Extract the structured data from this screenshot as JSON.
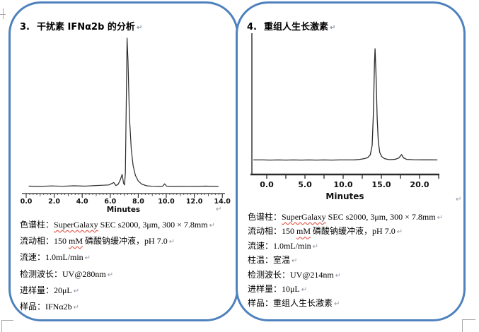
{
  "page": {
    "background": "#ffffff",
    "shape_border_color": "#4f81bd",
    "trace_color": "#2b2b2b",
    "paragraph_mark": "↵"
  },
  "panels": [
    {
      "title_number": "3.",
      "title": "干扰素 IFNα2b 的分析",
      "conditions": [
        {
          "parts": [
            {
              "t": "色谱柱："
            },
            {
              "t": "SuperGalaxy",
              "wavy": true
            },
            {
              "t": " SEC s2000, 3μm, 300 × 7.8mm"
            }
          ]
        },
        {
          "parts": [
            {
              "t": "流动相：150 "
            },
            {
              "t": "mM",
              "wavy": true
            },
            {
              "t": " 磷酸钠缓冲液，pH 7.0"
            }
          ]
        },
        {
          "parts": [
            {
              "t": "流速：1.0mL/min"
            }
          ]
        },
        {
          "parts": [
            {
              "t": "检测波长：UV@280nm"
            }
          ]
        },
        {
          "parts": [
            {
              "t": "进样量：20μL"
            }
          ]
        },
        {
          "parts": [
            {
              "t": "样品：IFNα2b"
            }
          ]
        }
      ]
    },
    {
      "title_number": "4.",
      "title": "重组人生长激素",
      "conditions": [
        {
          "parts": [
            {
              "t": "色谱柱："
            },
            {
              "t": "SuperGalaxy",
              "wavy": true
            },
            {
              "t": " SEC s2000, 3μm, 300 × 7.8mm"
            }
          ]
        },
        {
          "parts": [
            {
              "t": "流动相：150 "
            },
            {
              "t": "mM",
              "wavy": true
            },
            {
              "t": " 磷酸钠缓冲液，pH 7.0"
            }
          ]
        },
        {
          "parts": [
            {
              "t": "流速：1.0mL/min"
            }
          ]
        },
        {
          "parts": [
            {
              "t": "柱温：室温"
            }
          ]
        },
        {
          "parts": [
            {
              "t": "检测波长：UV@214nm"
            }
          ]
        },
        {
          "parts": [
            {
              "t": "进样量：10μL"
            }
          ]
        },
        {
          "parts": [
            {
              "t": "样品：重组人生长激素"
            }
          ]
        }
      ]
    }
  ],
  "chart_data": [
    {
      "type": "line",
      "title": "SEC chromatogram of IFNα2b",
      "xlabel": "Minutes",
      "ylabel": "",
      "xlim": [
        0,
        14
      ],
      "x_ticks": [
        0,
        2,
        4,
        6,
        8,
        10,
        12,
        14
      ],
      "x_tick_labels": [
        "0.0",
        "2.0",
        "4.0",
        "6.0",
        "8.0",
        "10.0",
        "12.0",
        "14.0"
      ],
      "main_peak_minutes": 7.2,
      "minor_peak_minutes": 6.85,
      "late_peak_minutes": 9.9,
      "points": [
        [
          0.2,
          0.012
        ],
        [
          1.0,
          0.01
        ],
        [
          1.8,
          0.013
        ],
        [
          2.6,
          0.011
        ],
        [
          3.4,
          0.014
        ],
        [
          4.2,
          0.012
        ],
        [
          5.0,
          0.016
        ],
        [
          5.5,
          0.018
        ],
        [
          5.9,
          0.02
        ],
        [
          6.25,
          0.036
        ],
        [
          6.4,
          0.016
        ],
        [
          6.55,
          0.022
        ],
        [
          6.7,
          0.05
        ],
        [
          6.85,
          0.09
        ],
        [
          6.95,
          0.032
        ],
        [
          7.02,
          0.02
        ],
        [
          7.08,
          0.1
        ],
        [
          7.14,
          0.55
        ],
        [
          7.2,
          1.0
        ],
        [
          7.27,
          0.85
        ],
        [
          7.37,
          0.48
        ],
        [
          7.5,
          0.26
        ],
        [
          7.63,
          0.15
        ],
        [
          7.8,
          0.083
        ],
        [
          8.0,
          0.046
        ],
        [
          8.25,
          0.025
        ],
        [
          8.6,
          0.014
        ],
        [
          9.0,
          0.011
        ],
        [
          9.5,
          0.01
        ],
        [
          9.75,
          0.012
        ],
        [
          9.88,
          0.027
        ],
        [
          10.02,
          0.012
        ],
        [
          10.4,
          0.01
        ],
        [
          11.2,
          0.011
        ],
        [
          12.0,
          0.01
        ],
        [
          12.8,
          0.012
        ],
        [
          13.7,
          0.01
        ]
      ]
    },
    {
      "type": "line",
      "title": "SEC chromatogram of recombinant human growth hormone",
      "xlabel": "Minutes",
      "ylabel": "",
      "xlim": [
        0,
        22.4
      ],
      "x_ticks": [
        0,
        5,
        10,
        15,
        20
      ],
      "x_tick_labels": [
        "0.0",
        "5.0",
        "10.0",
        "15.0",
        "20.0"
      ],
      "main_peak_minutes": 14.2,
      "late_peak_minutes": 17.7,
      "points": [
        [
          -1.7,
          0.01
        ],
        [
          -0.5,
          0.01
        ],
        [
          0.5,
          0.009
        ],
        [
          1.5,
          0.01
        ],
        [
          2.5,
          0.009
        ],
        [
          3.5,
          0.01
        ],
        [
          4.5,
          0.009
        ],
        [
          5.5,
          0.01
        ],
        [
          6.5,
          0.009
        ],
        [
          7.5,
          0.01
        ],
        [
          8.5,
          0.009
        ],
        [
          9.5,
          0.01
        ],
        [
          10.5,
          0.01
        ],
        [
          11.5,
          0.011
        ],
        [
          12.2,
          0.015
        ],
        [
          12.8,
          0.022
        ],
        [
          13.2,
          0.03
        ],
        [
          13.55,
          0.055
        ],
        [
          13.8,
          0.14
        ],
        [
          13.95,
          0.42
        ],
        [
          14.1,
          0.88
        ],
        [
          14.18,
          1.0
        ],
        [
          14.3,
          0.78
        ],
        [
          14.45,
          0.38
        ],
        [
          14.6,
          0.17
        ],
        [
          14.8,
          0.075
        ],
        [
          15.05,
          0.04
        ],
        [
          15.4,
          0.022
        ],
        [
          15.9,
          0.014
        ],
        [
          16.4,
          0.013
        ],
        [
          16.9,
          0.017
        ],
        [
          17.3,
          0.028
        ],
        [
          17.65,
          0.058
        ],
        [
          17.9,
          0.028
        ],
        [
          18.3,
          0.015
        ],
        [
          19.2,
          0.012
        ],
        [
          20.5,
          0.011
        ],
        [
          21.5,
          0.011
        ],
        [
          22.3,
          0.01
        ]
      ]
    }
  ]
}
